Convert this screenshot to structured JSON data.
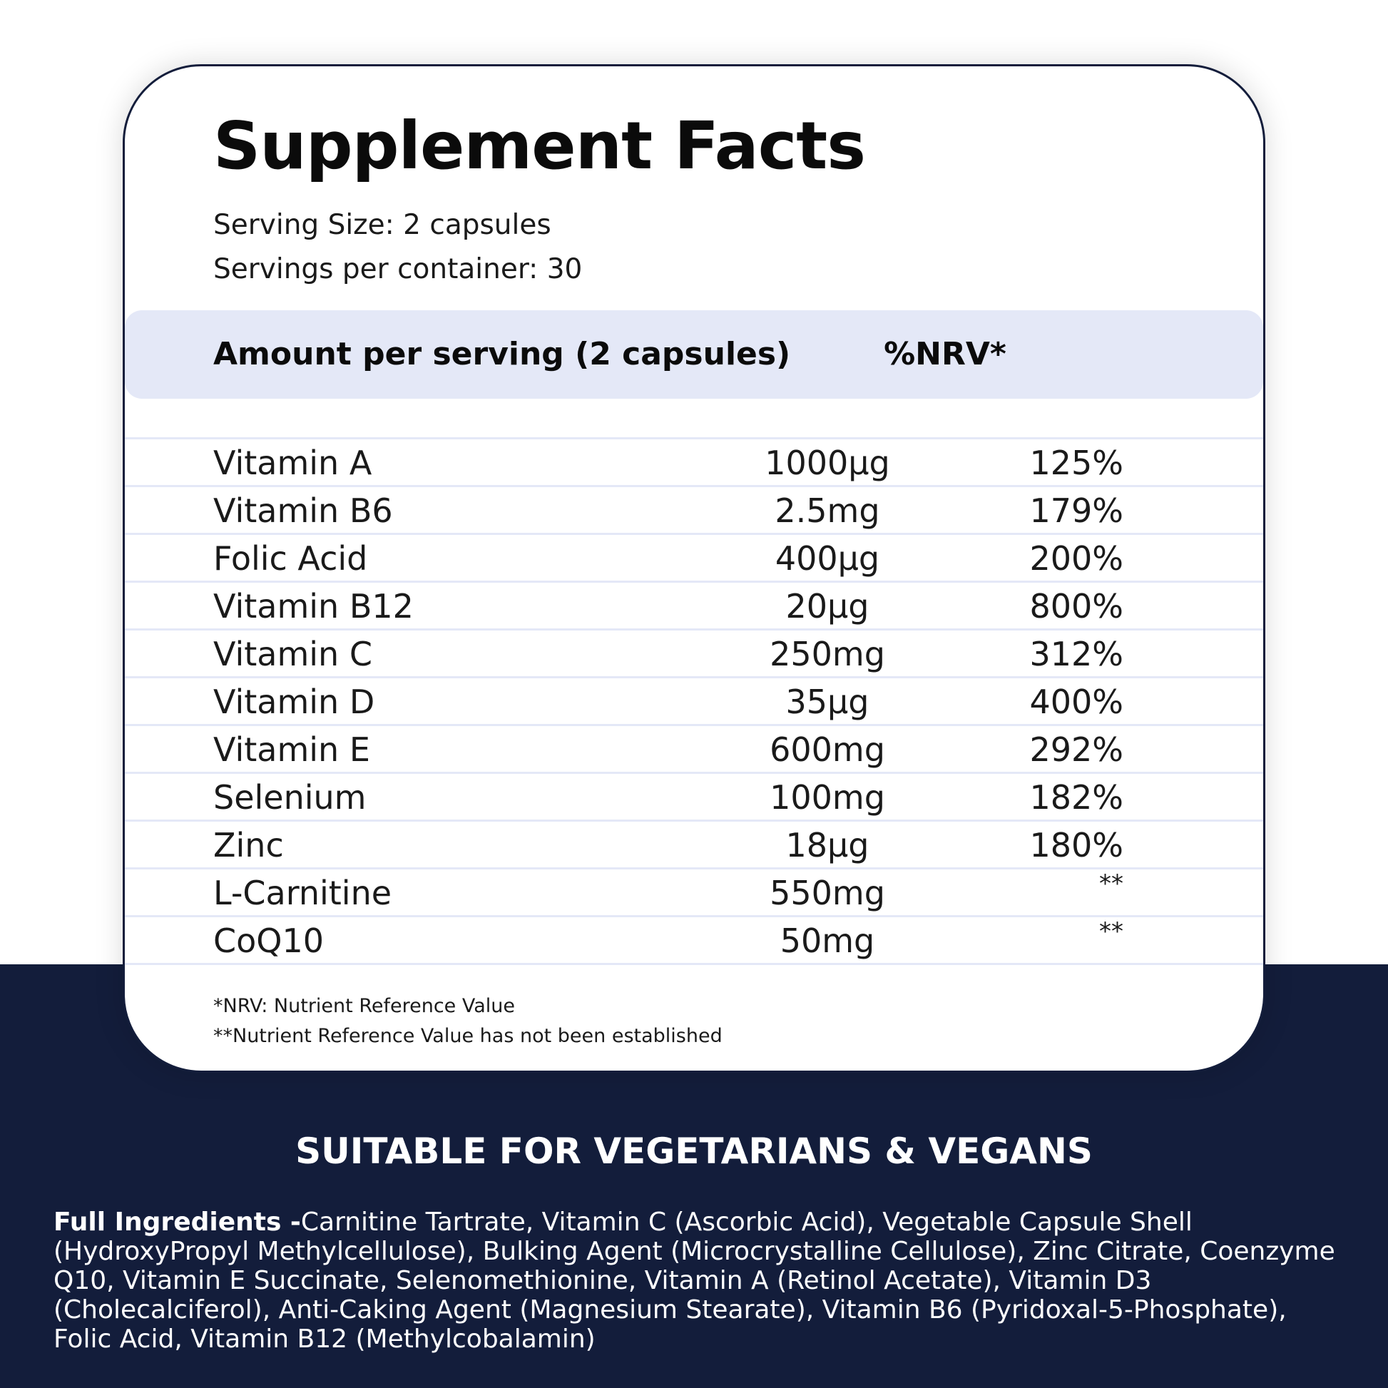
{
  "title": "Supplement Facts",
  "serving_size": "Serving Size: 2 capsules",
  "servings_per_container": "Servings per container: 30",
  "table": {
    "header_left": "Amount per serving (2 capsules)",
    "header_right": "%NRV*",
    "rows": [
      {
        "name": "Vitamin A",
        "amount": "1000μg",
        "nrv": "125%"
      },
      {
        "name": "Vitamin B6",
        "amount": "2.5mg",
        "nrv": "179%"
      },
      {
        "name": "Folic Acid",
        "amount": "400μg",
        "nrv": "200%"
      },
      {
        "name": "Vitamin B12",
        "amount": "20μg",
        "nrv": "800%"
      },
      {
        "name": "Vitamin C",
        "amount": "250mg",
        "nrv": "312%"
      },
      {
        "name": "Vitamin D",
        "amount": "35μg",
        "nrv": "400%"
      },
      {
        "name": "Vitamin E",
        "amount": "600mg",
        "nrv": "292%"
      },
      {
        "name": "Selenium",
        "amount": "100mg",
        "nrv": "182%"
      },
      {
        "name": "Zinc",
        "amount": "18μg",
        "nrv": "180%"
      },
      {
        "name": "L-Carnitine",
        "amount": "550mg",
        "nrv": "**"
      },
      {
        "name": "CoQ10",
        "amount": "50mg",
        "nrv": "**"
      }
    ]
  },
  "footnotes": {
    "nrv": "*NRV: Nutrient Reference Value",
    "not_established": "**Nutrient Reference Value has not been established"
  },
  "suitable": "SUITABLE FOR VEGETARIANS & VEGANS",
  "ingredients": {
    "label": "Full Ingredients -",
    "text": "Carnitine Tartrate, Vitamin C (Ascorbic Acid), Vegetable Capsule Shell (HydroxyPropyl Methylcellulose), Bulking Agent (Microcrystalline Cellulose), Zinc Citrate, Coenzyme Q10, Vitamin E Succinate, Selenomethionine, Vitamin A (Retinol Acetate), Vitamin D3 (Cholecalciferol), Anti-Caking Agent (Magnesium Stearate), Vitamin B6 (Pyridoxal-5-Phosphate), Folic Acid, Vitamin B12 (Methylcobalamin)"
  },
  "colors": {
    "navy": "#131d3b",
    "header_bar": "#e4e8f7",
    "row_divider": "#e4e8f7"
  }
}
